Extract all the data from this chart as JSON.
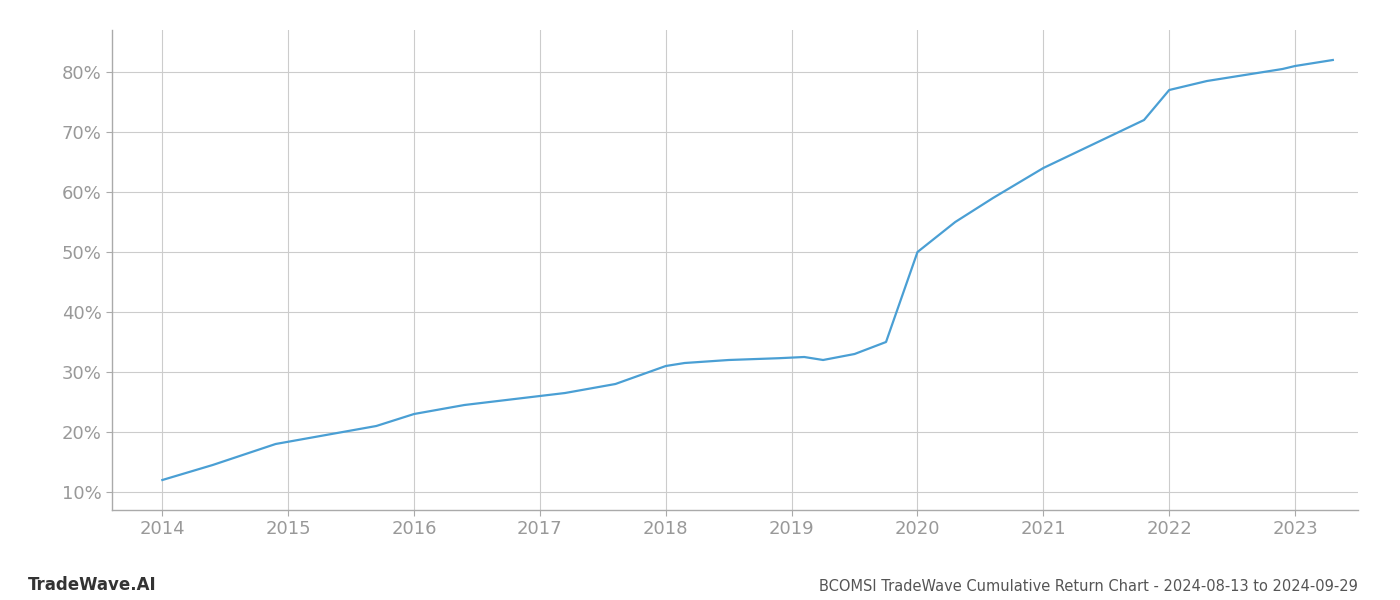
{
  "title": "BCOMSI TradeWave Cumulative Return Chart - 2024-08-13 to 2024-09-29",
  "watermark": "TradeWave.AI",
  "line_color": "#4a9fd4",
  "background_color": "#ffffff",
  "grid_color": "#cccccc",
  "x_values": [
    2014.0,
    2014.4,
    2014.9,
    2015.3,
    2015.7,
    2016.0,
    2016.4,
    2016.8,
    2017.2,
    2017.6,
    2018.0,
    2018.15,
    2018.5,
    2018.9,
    2019.1,
    2019.25,
    2019.5,
    2019.75,
    2020.0,
    2020.3,
    2020.6,
    2021.0,
    2021.4,
    2021.8,
    2022.0,
    2022.3,
    2022.6,
    2022.9,
    2023.0,
    2023.3
  ],
  "y_values": [
    12.0,
    14.5,
    18.0,
    19.5,
    21.0,
    23.0,
    24.5,
    25.5,
    26.5,
    28.0,
    31.0,
    31.5,
    32.0,
    32.3,
    32.5,
    32.0,
    33.0,
    35.0,
    50.0,
    55.0,
    59.0,
    64.0,
    68.0,
    72.0,
    77.0,
    78.5,
    79.5,
    80.5,
    81.0,
    82.0
  ],
  "xlim": [
    2013.6,
    2023.5
  ],
  "ylim": [
    7,
    87
  ],
  "yticks": [
    10,
    20,
    30,
    40,
    50,
    60,
    70,
    80
  ],
  "xticks": [
    2014,
    2015,
    2016,
    2017,
    2018,
    2019,
    2020,
    2021,
    2022,
    2023
  ],
  "tick_label_color": "#999999",
  "axis_color": "#aaaaaa",
  "title_color": "#555555",
  "watermark_color": "#333333",
  "line_width": 1.6,
  "title_fontsize": 10.5,
  "tick_fontsize": 13,
  "watermark_fontsize": 12
}
